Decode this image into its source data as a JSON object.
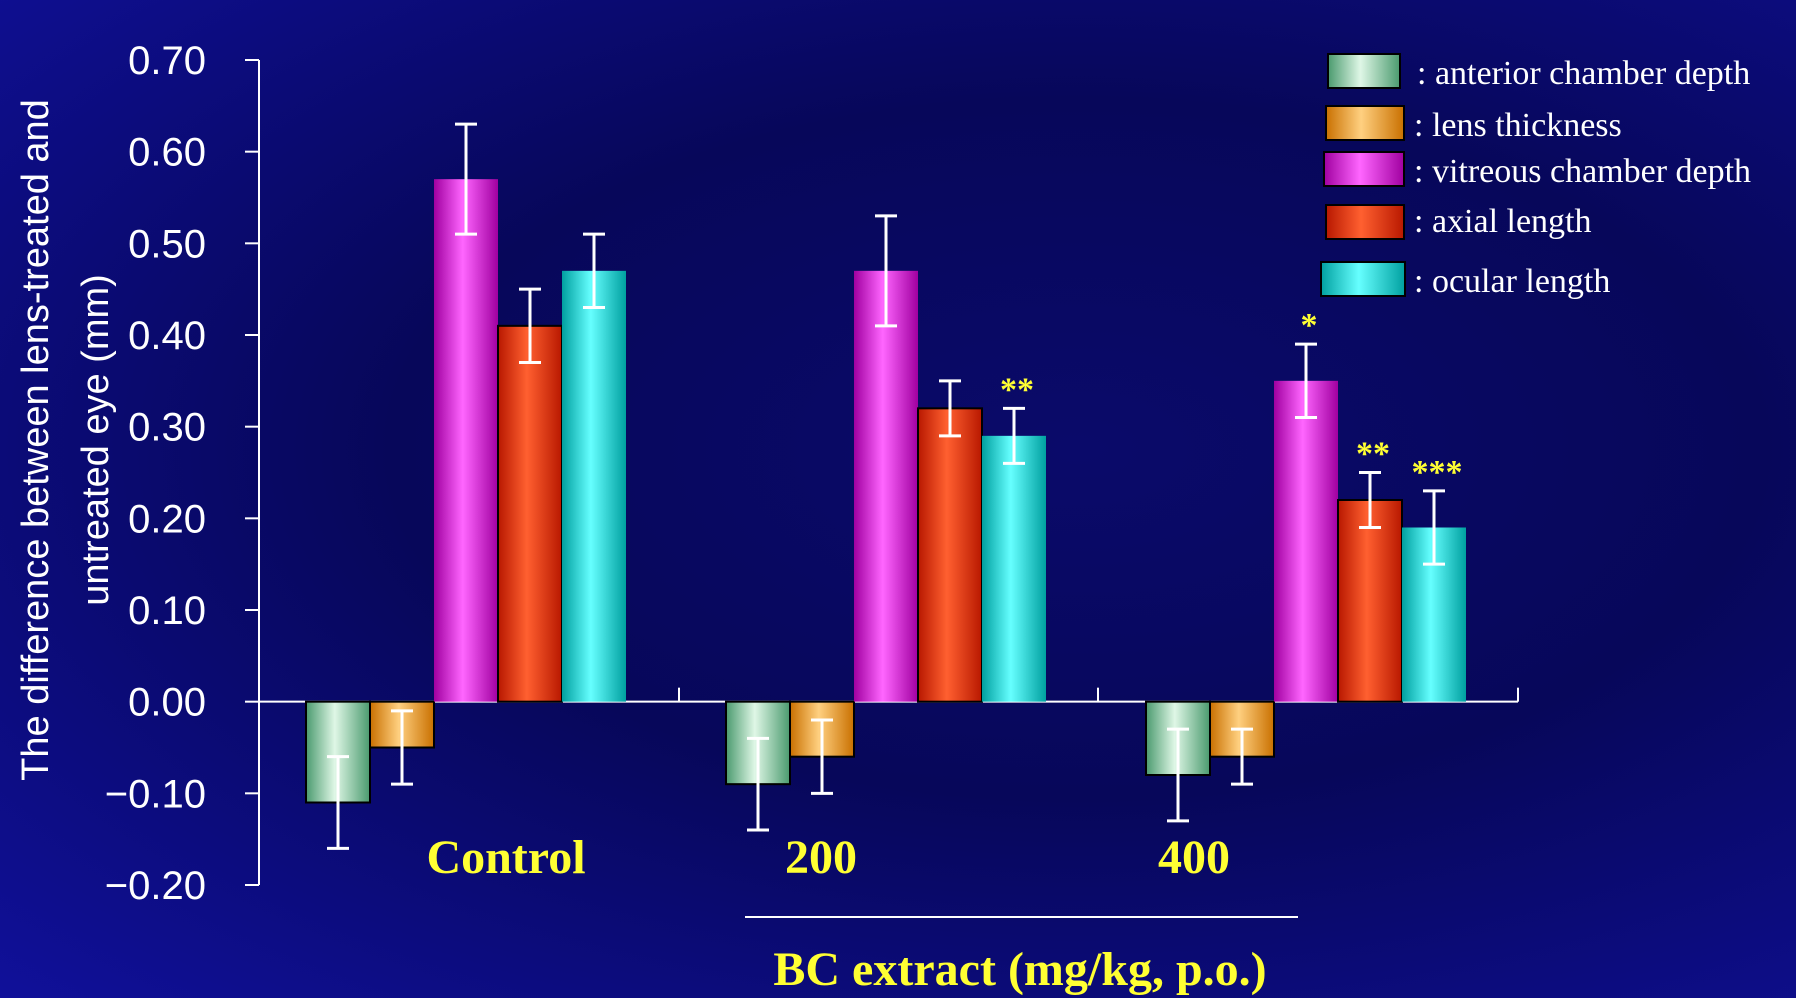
{
  "colors": {
    "axis": "#ffffff",
    "error_bar": "#ffffff",
    "label_highlight": "#ffff33"
  },
  "chart_data": {
    "type": "bar",
    "categories": [
      "Control",
      "200",
      "400"
    ],
    "xlabel": "BC extract (mg/kg, p.o.)",
    "ylabel_lines": [
      "The difference between lens-treated and",
      "untreated eye (mm)"
    ],
    "ylim": [
      -0.2,
      0.7
    ],
    "yticks": [
      "0.70",
      "0.60",
      "0.50",
      "0.40",
      "0.30",
      "0.20",
      "0.10",
      "0.00",
      "−0.10",
      "−0.20"
    ],
    "ytick_values": [
      0.7,
      0.6,
      0.5,
      0.4,
      0.3,
      0.2,
      0.1,
      0.0,
      -0.1,
      -0.2
    ],
    "grid": false,
    "legend_position": "top-right",
    "series": [
      {
        "name": ": anterior chamber depth",
        "color_light": "#dff7e6",
        "color_dark": "#4a9a6e",
        "values": [
          -0.11,
          -0.09,
          -0.08
        ],
        "errors": [
          0.05,
          0.05,
          0.05
        ],
        "significance": [
          "",
          "",
          ""
        ]
      },
      {
        "name": ": lens thickness",
        "color_light": "#ffd080",
        "color_dark": "#c97000",
        "values": [
          -0.05,
          -0.06,
          -0.06
        ],
        "errors": [
          0.04,
          0.04,
          0.03
        ],
        "significance": [
          "",
          "",
          ""
        ]
      },
      {
        "name": ": vitreous chamber depth",
        "color_light": "#ff66ff",
        "color_dark": "#a000a0",
        "values": [
          0.57,
          0.47,
          0.35
        ],
        "errors": [
          0.06,
          0.06,
          0.04
        ],
        "significance": [
          "",
          "",
          "*"
        ]
      },
      {
        "name": ": axial length",
        "color_light": "#ff6030",
        "color_dark": "#b81800",
        "values": [
          0.41,
          0.32,
          0.22
        ],
        "errors": [
          0.04,
          0.03,
          0.03
        ],
        "significance": [
          "",
          "",
          "**"
        ]
      },
      {
        "name": ": ocular length",
        "color_light": "#66ffff",
        "color_dark": "#00a0a0",
        "values": [
          0.47,
          0.29,
          0.19
        ],
        "errors": [
          0.04,
          0.03,
          0.04
        ],
        "significance": [
          "",
          "**",
          "***"
        ]
      }
    ]
  }
}
